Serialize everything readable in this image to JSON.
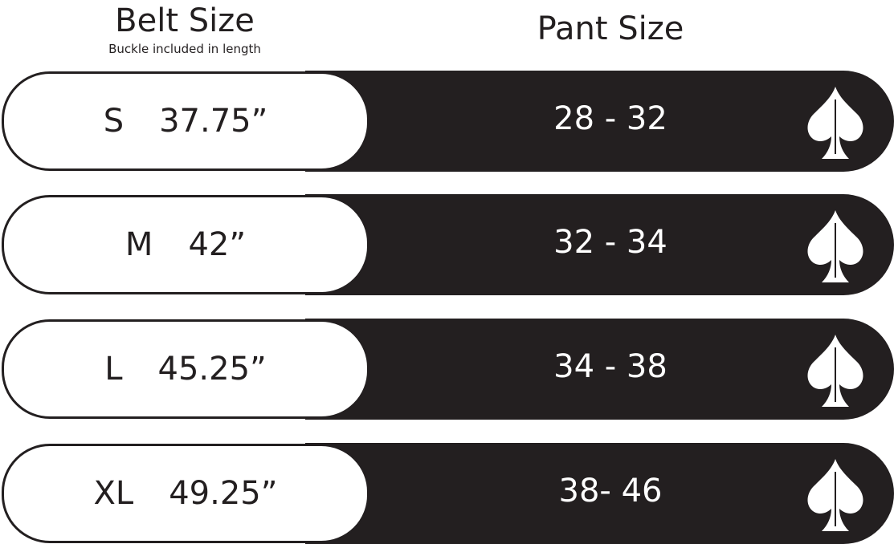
{
  "header": {
    "belt_title": "Belt Size",
    "belt_subtitle": "Buckle included in length",
    "pant_title": "Pant Size"
  },
  "rows": [
    {
      "size": "S",
      "length": "37.75”",
      "pant": "28 - 32"
    },
    {
      "size": "M",
      "length": "42”",
      "pant": "32 - 34"
    },
    {
      "size": "L",
      "length": "45.25”",
      "pant": "34 - 38"
    },
    {
      "size": "XL",
      "length": "49.25”",
      "pant": "38- 46"
    }
  ],
  "icon": "spade-golf-flag-icon",
  "colors": {
    "dark": "#231f20",
    "light": "#ffffff"
  }
}
